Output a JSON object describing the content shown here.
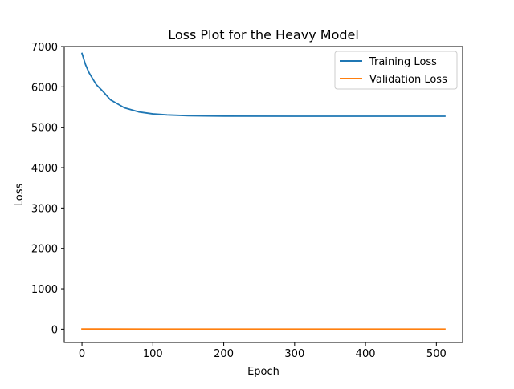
{
  "chart_data": {
    "type": "line",
    "title": "Loss Plot for the Heavy Model",
    "xlabel": "Epoch",
    "ylabel": "Loss",
    "xlim": [
      -25,
      537
    ],
    "ylim": [
      -330,
      7000
    ],
    "xticks": [
      0,
      100,
      200,
      300,
      400,
      500
    ],
    "yticks": [
      0,
      1000,
      2000,
      3000,
      4000,
      5000,
      6000,
      7000
    ],
    "grid": false,
    "legend_position": "top-right",
    "series": [
      {
        "name": "Training Loss",
        "color": "#1f77b4",
        "x": [
          0,
          5,
          10,
          20,
          30,
          40,
          60,
          80,
          100,
          120,
          150,
          200,
          300,
          400,
          512
        ],
        "y": [
          6830,
          6550,
          6350,
          6060,
          5880,
          5680,
          5480,
          5380,
          5330,
          5305,
          5285,
          5275,
          5272,
          5272,
          5272
        ]
      },
      {
        "name": "Validation Loss",
        "color": "#ff7f0e",
        "x": [
          0,
          100,
          200,
          300,
          400,
          512
        ],
        "y": [
          5,
          3,
          2,
          2,
          2,
          2
        ]
      }
    ]
  }
}
